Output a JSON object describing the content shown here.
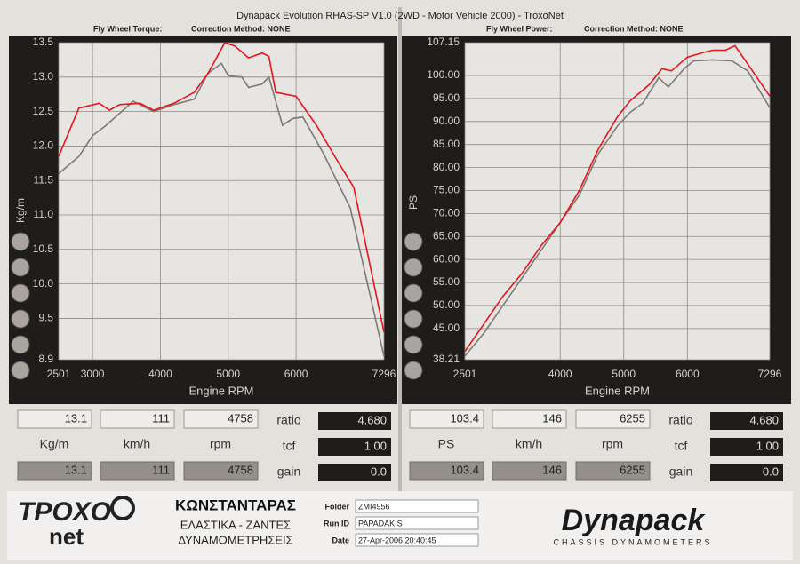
{
  "header": {
    "title": "Dynapack Evolution RHAS-SP V1.0  (2WD - Motor Vehicle 2000) - TroxoNet"
  },
  "chart_data": [
    {
      "type": "line",
      "title": "Fly Wheel Torque:",
      "subtitle": "Correction Method: NONE",
      "x_label": "Engine RPM",
      "y_label": "Kg/m",
      "xlim": [
        2501,
        7296
      ],
      "xticks": [
        2501,
        3000,
        4000,
        5000,
        6000,
        7296
      ],
      "ylim": [
        8.9,
        13.5
      ],
      "yticks": [
        8.9,
        9.5,
        {
          "value": 10,
          "label": "10.0"
        },
        10.5,
        {
          "value": 11,
          "label": "11.0"
        },
        11.5,
        {
          "value": 12,
          "label": "12.0"
        },
        12.5,
        {
          "value": 13,
          "label": "13.0"
        },
        13.5
      ],
      "grid": true,
      "series": [
        {
          "color": "#e8141b",
          "x": [
            2501,
            2800,
            3100,
            3250,
            3400,
            3700,
            3900,
            4200,
            4500,
            4700,
            4950,
            5100,
            5300,
            5500,
            5600,
            5700,
            6000,
            6300,
            6600,
            6850,
            7296
          ],
          "values": [
            11.85,
            12.55,
            12.62,
            12.52,
            12.6,
            12.62,
            12.52,
            12.62,
            12.78,
            13.05,
            13.5,
            13.45,
            13.28,
            13.35,
            13.3,
            12.78,
            12.72,
            12.3,
            11.8,
            11.4,
            9.3
          ]
        },
        {
          "color": "#7d7a75",
          "x": [
            2501,
            2800,
            3000,
            3200,
            3600,
            3900,
            4200,
            4500,
            4700,
            4900,
            5000,
            5200,
            5300,
            5500,
            5600,
            5800,
            5950,
            6100,
            6400,
            6800,
            7296
          ],
          "values": [
            11.6,
            11.85,
            12.15,
            12.3,
            12.65,
            12.5,
            12.6,
            12.68,
            13.05,
            13.2,
            13.02,
            13.0,
            12.85,
            12.9,
            13.0,
            12.3,
            12.4,
            12.42,
            11.9,
            11.1,
            8.95
          ]
        }
      ]
    },
    {
      "type": "line",
      "title": "Fly Wheel Power:",
      "subtitle": "Correction Method: NONE",
      "x_label": "Engine RPM",
      "y_label": "PS",
      "xlim": [
        2501,
        7296
      ],
      "xticks": [
        2501,
        4000,
        5000,
        6000,
        7296
      ],
      "ylim": [
        38.21,
        107.15
      ],
      "yticks": [
        38.21,
        {
          "value": 45,
          "label": "45.00"
        },
        {
          "value": 50,
          "label": "50.00"
        },
        {
          "value": 55,
          "label": "55.00"
        },
        {
          "value": 60,
          "label": "60.00"
        },
        {
          "value": 65,
          "label": "65.00"
        },
        {
          "value": 70,
          "label": "70.00"
        },
        {
          "value": 75,
          "label": "75.00"
        },
        {
          "value": 80,
          "label": "80.00"
        },
        {
          "value": 85,
          "label": "85.00"
        },
        {
          "value": 90,
          "label": "90.00"
        },
        {
          "value": 95,
          "label": "95.00"
        },
        {
          "value": 100,
          "label": "100.00"
        },
        107.15
      ],
      "grid": true,
      "series": [
        {
          "color": "#e8141b",
          "x": [
            2501,
            2800,
            3100,
            3400,
            3700,
            4000,
            4300,
            4600,
            4900,
            5100,
            5400,
            5600,
            5750,
            6000,
            6250,
            6400,
            6600,
            6750,
            6950,
            7296
          ],
          "values": [
            40,
            46,
            52,
            57,
            63,
            68,
            75,
            84,
            91,
            94.5,
            98,
            101.5,
            101,
            104,
            105,
            105.5,
            105.5,
            106.5,
            102.5,
            95.5
          ]
        },
        {
          "color": "#7d7a75",
          "x": [
            2501,
            2800,
            3100,
            3400,
            3700,
            4000,
            4300,
            4600,
            4900,
            5100,
            5300,
            5550,
            5700,
            5950,
            6100,
            6400,
            6700,
            6950,
            7296
          ],
          "values": [
            39,
            44,
            50,
            56,
            62,
            68,
            74,
            83,
            89,
            92,
            94,
            99.5,
            97.5,
            101.5,
            103.2,
            103.4,
            103.2,
            101,
            93
          ]
        }
      ]
    }
  ],
  "readouts": [
    {
      "row1": [
        "13.1",
        "111",
        "4758"
      ],
      "units": [
        "Kg/m",
        "km/h",
        "rpm"
      ],
      "row3": [
        "13.1",
        "111",
        "4758"
      ],
      "side_labels": [
        "ratio",
        "tcf",
        "gain"
      ],
      "side_values": [
        "4.680",
        "1.00",
        "0.0"
      ]
    },
    {
      "row1": [
        "103.4",
        "146",
        "6255"
      ],
      "units": [
        "PS",
        "km/h",
        "rpm"
      ],
      "row3": [
        "103.4",
        "146",
        "6255"
      ],
      "side_labels": [
        "ratio",
        "tcf",
        "gain"
      ],
      "side_values": [
        "4.680",
        "1.00",
        "0.0"
      ]
    }
  ],
  "footer": {
    "logo": "ΤΡΟΧΟ",
    "logo_sub": "net",
    "company": "ΚΩΝΣΤΑΝΤΑΡΑΣ",
    "line1": "ΕΛΑΣΤΙΚΑ  -  ΖΑΝΤΕΣ",
    "line2": "ΔΥΝΑΜΟΜΕΤΡΗΣΕΙΣ",
    "folder_label": "Folder",
    "folder": "ZMI4956",
    "run_label": "Run ID",
    "run_id": "PAPADAKIS",
    "date_label": "Date",
    "date": "27-Apr-2006  20:40:45",
    "brand": "Dynapack",
    "brand_sub": "CHASSIS DYNAMOMETERS"
  }
}
